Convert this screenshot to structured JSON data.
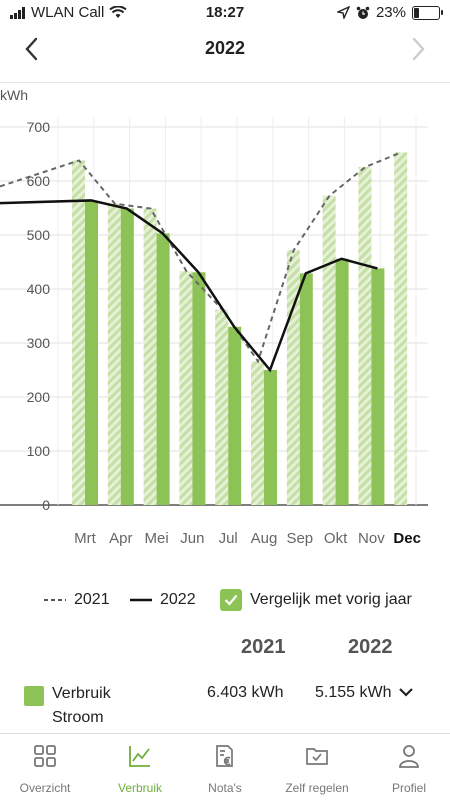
{
  "status_bar": {
    "carrier": "WLAN Call",
    "time": "18:27",
    "battery": "23%",
    "battery_level": 0.23
  },
  "header": {
    "title": "2022"
  },
  "chart_data": {
    "type": "bar",
    "ylabel": "kWh",
    "ylim": [
      0,
      700
    ],
    "yticks": [
      "700",
      "600",
      "500",
      "400",
      "300",
      "200",
      "100",
      "0"
    ],
    "categories": [
      "Mrt",
      "Apr",
      "Mei",
      "Jun",
      "Jul",
      "Aug",
      "Sep",
      "Okt",
      "Nov",
      "Dec"
    ],
    "highlighted_category": "Dec",
    "series": [
      {
        "name": "2021",
        "style": "hatched bar + dashed line",
        "color": "#c5dfa6",
        "values": [
          638,
          558,
          549,
          433,
          362,
          266,
          472,
          573,
          626,
          653
        ]
      },
      {
        "name": "2022",
        "style": "solid bar + solid line",
        "color": "#8dc356",
        "values": [
          564,
          549,
          503,
          431,
          330,
          250,
          429,
          456,
          438,
          null
        ]
      }
    ],
    "colors": {
      "bar_2022": "#8dc356",
      "bar_2021": "#c5dfa6",
      "line_2022": "#111111",
      "line_2021": "#666666"
    }
  },
  "legend": {
    "y2021": "2021",
    "y2022": "2022",
    "compare_label": "Vergelijk met vorig jaar",
    "compare_checked": true
  },
  "summary": {
    "col_2021": "2021",
    "col_2022": "2022",
    "row_label_1": "Verbruik",
    "row_label_2": "Stroom",
    "value_2021": "6.403 kWh",
    "value_2022": "5.155 kWh"
  },
  "tabs": [
    {
      "label": "Overzicht",
      "icon": "grid-icon",
      "active": false
    },
    {
      "label": "Verbruik",
      "icon": "chart-icon",
      "active": true
    },
    {
      "label": "Nota's",
      "icon": "invoice-icon",
      "active": false
    },
    {
      "label": "Zelf regelen",
      "icon": "folder-check-icon",
      "active": false
    },
    {
      "label": "Profiel",
      "icon": "person-icon",
      "active": false
    }
  ]
}
